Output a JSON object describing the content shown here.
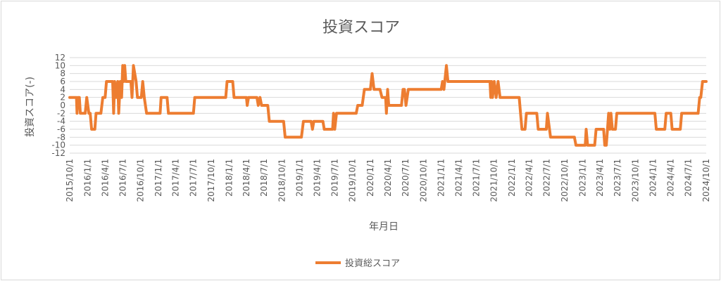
{
  "chart_data": {
    "type": "line",
    "title": "投資スコア",
    "xlabel": "年月日",
    "ylabel": "投資スコア(-)",
    "ylim": [
      -12,
      12
    ],
    "yticks": [
      12,
      10,
      8,
      6,
      4,
      2,
      0,
      -2,
      -4,
      -6,
      -8,
      -10,
      -12
    ],
    "xticks": [
      "2015/10/1",
      "2016/1/1",
      "2016/4/1",
      "2016/7/1",
      "2016/10/1",
      "2017/1/1",
      "2017/4/1",
      "2017/7/1",
      "2017/10/1",
      "2018/1/1",
      "2018/4/1",
      "2018/7/1",
      "2018/10/1",
      "2019/1/1",
      "2019/4/1",
      "2019/7/1",
      "2019/10/1",
      "2020/1/1",
      "2020/4/1",
      "2020/7/1",
      "2020/10/1",
      "2021/1/1",
      "2021/4/1",
      "2021/7/1",
      "2021/10/1",
      "2022/1/1",
      "2022/4/1",
      "2022/7/1",
      "2022/10/1",
      "2023/1/1",
      "2023/4/1",
      "2023/7/1",
      "2023/10/1",
      "2024/1/1",
      "2024/4/1",
      "2024/7/1",
      "2024/10/1"
    ],
    "grid": true,
    "legend_position": "bottom",
    "series": [
      {
        "name": "投資総スコア",
        "color": "#ED7D31",
        "points": [
          [
            "2015/10/1",
            2
          ],
          [
            "2015/11/5",
            2
          ],
          [
            "2015/11/8",
            -2
          ],
          [
            "2015/11/12",
            2
          ],
          [
            "2015/11/20",
            2
          ],
          [
            "2015/11/25",
            -2
          ],
          [
            "2015/12/20",
            -2
          ],
          [
            "2015/12/28",
            2
          ],
          [
            "2016/1/8",
            -2
          ],
          [
            "2016/1/15",
            -2
          ],
          [
            "2016/1/22",
            -6
          ],
          [
            "2016/2/8",
            -6
          ],
          [
            "2016/2/14",
            -2
          ],
          [
            "2016/3/10",
            -2
          ],
          [
            "2016/3/20",
            2
          ],
          [
            "2016/4/1",
            2
          ],
          [
            "2016/4/8",
            6
          ],
          [
            "2016/5/10",
            6
          ],
          [
            "2016/5/15",
            -2
          ],
          [
            "2016/5/20",
            6
          ],
          [
            "2016/5/28",
            2
          ],
          [
            "2016/6/5",
            6
          ],
          [
            "2016/6/10",
            -2
          ],
          [
            "2016/6/18",
            6
          ],
          [
            "2016/6/25",
            2
          ],
          [
            "2016/7/1",
            10
          ],
          [
            "2016/7/6",
            6
          ],
          [
            "2016/7/11",
            10
          ],
          [
            "2016/7/17",
            6
          ],
          [
            "2016/8/12",
            6
          ],
          [
            "2016/8/18",
            2
          ],
          [
            "2016/8/25",
            10
          ],
          [
            "2016/9/8",
            6
          ],
          [
            "2016/9/15",
            2
          ],
          [
            "2016/10/5",
            2
          ],
          [
            "2016/10/12",
            6
          ],
          [
            "2016/10/20",
            2
          ],
          [
            "2016/11/1",
            -2
          ],
          [
            "2017/1/10",
            -2
          ],
          [
            "2017/1/15",
            2
          ],
          [
            "2017/2/15",
            2
          ],
          [
            "2017/2/22",
            -2
          ],
          [
            "2017/7/1",
            -2
          ],
          [
            "2017/7/8",
            2
          ],
          [
            "2017/12/15",
            2
          ],
          [
            "2017/12/22",
            6
          ],
          [
            "2018/1/20",
            6
          ],
          [
            "2018/1/27",
            2
          ],
          [
            "2018/4/1",
            2
          ],
          [
            "2018/4/5",
            0
          ],
          [
            "2018/4/12",
            2
          ],
          [
            "2018/5/25",
            2
          ],
          [
            "2018/6/1",
            0
          ],
          [
            "2018/6/10",
            2
          ],
          [
            "2018/6/18",
            0
          ],
          [
            "2018/7/20",
            0
          ],
          [
            "2018/7/28",
            -4
          ],
          [
            "2018/10/10",
            -4
          ],
          [
            "2018/10/18",
            -8
          ],
          [
            "2019/1/10",
            -8
          ],
          [
            "2019/1/20",
            -4
          ],
          [
            "2019/3/1",
            -4
          ],
          [
            "2019/3/8",
            -6
          ],
          [
            "2019/3/15",
            -4
          ],
          [
            "2019/5/1",
            -4
          ],
          [
            "2019/5/8",
            -6
          ],
          [
            "2019/6/20",
            -6
          ],
          [
            "2019/6/25",
            -2
          ],
          [
            "2019/7/1",
            -6
          ],
          [
            "2019/7/10",
            -2
          ],
          [
            "2019/10/20",
            -2
          ],
          [
            "2019/10/28",
            0
          ],
          [
            "2019/11/20",
            0
          ],
          [
            "2019/12/1",
            4
          ],
          [
            "2020/1/1",
            4
          ],
          [
            "2020/1/10",
            8
          ],
          [
            "2020/1/20",
            4
          ],
          [
            "2020/2/20",
            4
          ],
          [
            "2020/3/1",
            2
          ],
          [
            "2020/3/20",
            2
          ],
          [
            "2020/3/24",
            -2
          ],
          [
            "2020/3/30",
            4
          ],
          [
            "2020/4/5",
            0
          ],
          [
            "2020/6/10",
            0
          ],
          [
            "2020/6/18",
            4
          ],
          [
            "2020/6/25",
            4
          ],
          [
            "2020/7/3",
            0
          ],
          [
            "2020/7/15",
            4
          ],
          [
            "2021/1/1",
            4
          ],
          [
            "2021/1/8",
            6
          ],
          [
            "2021/1/15",
            4
          ],
          [
            "2021/1/28",
            10
          ],
          [
            "2021/2/5",
            6
          ],
          [
            "2021/9/10",
            6
          ],
          [
            "2021/9/14",
            2
          ],
          [
            "2021/9/18",
            6
          ],
          [
            "2021/9/23",
            2
          ],
          [
            "2021/10/2",
            6
          ],
          [
            "2021/10/12",
            2
          ],
          [
            "2021/10/22",
            6
          ],
          [
            "2021/11/1",
            2
          ],
          [
            "2022/2/8",
            2
          ],
          [
            "2022/2/15",
            -2
          ],
          [
            "2022/2/22",
            -6
          ],
          [
            "2022/3/10",
            -6
          ],
          [
            "2022/3/17",
            -2
          ],
          [
            "2022/5/10",
            -2
          ],
          [
            "2022/5/17",
            -6
          ],
          [
            "2022/6/28",
            -6
          ],
          [
            "2022/7/4",
            -2
          ],
          [
            "2022/7/20",
            -8
          ],
          [
            "2022/11/20",
            -8
          ],
          [
            "2022/11/28",
            -10
          ],
          [
            "2023/1/15",
            -10
          ],
          [
            "2023/1/20",
            -6
          ],
          [
            "2023/1/27",
            -10
          ],
          [
            "2023/3/5",
            -10
          ],
          [
            "2023/3/12",
            -6
          ],
          [
            "2023/4/20",
            -6
          ],
          [
            "2023/4/26",
            -10
          ],
          [
            "2023/5/4",
            -10
          ],
          [
            "2023/5/10",
            -6
          ],
          [
            "2023/5/16",
            -2
          ],
          [
            "2023/5/22",
            -6
          ],
          [
            "2023/5/28",
            -2
          ],
          [
            "2023/6/4",
            -6
          ],
          [
            "2023/6/20",
            -6
          ],
          [
            "2023/6/27",
            -2
          ],
          [
            "2024/1/10",
            -2
          ],
          [
            "2024/1/17",
            -6
          ],
          [
            "2024/3/1",
            -6
          ],
          [
            "2024/3/8",
            -2
          ],
          [
            "2024/4/1",
            -2
          ],
          [
            "2024/4/8",
            -6
          ],
          [
            "2024/5/20",
            -6
          ],
          [
            "2024/5/27",
            -2
          ],
          [
            "2024/8/20",
            -2
          ],
          [
            "2024/8/28",
            2
          ],
          [
            "2024/9/3",
            2
          ],
          [
            "2024/9/12",
            6
          ],
          [
            "2024/10/1",
            6
          ]
        ]
      }
    ]
  }
}
